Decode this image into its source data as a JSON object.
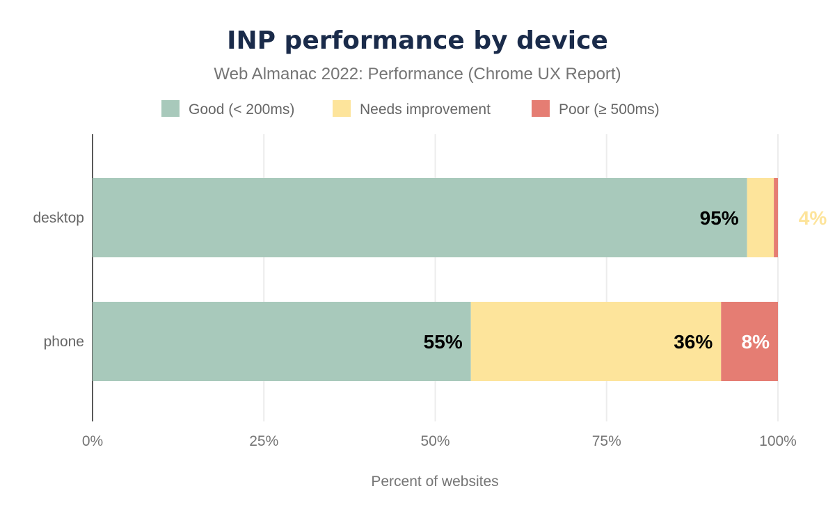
{
  "chart_data": {
    "type": "bar",
    "orientation": "horizontal",
    "stacked": true,
    "title": "INP performance by device",
    "subtitle": "Web Almanac 2022: Performance (Chrome UX Report)",
    "xlabel": "Percent of websites",
    "ylabel": "",
    "xlim": [
      0,
      100
    ],
    "x_ticks": [
      "0%",
      "25%",
      "50%",
      "75%",
      "100%"
    ],
    "grid": true,
    "legend_position": "top",
    "categories": [
      "desktop",
      "phone"
    ],
    "series": [
      {
        "name": "Good (< 200ms)",
        "color": "#a8c9bb",
        "values": [
          95.5,
          55.2
        ],
        "labels": [
          "95%",
          "55%"
        ],
        "label_color": "#000000"
      },
      {
        "name": "Needs improvement",
        "color": "#fde49b",
        "values": [
          3.9,
          36.5
        ],
        "labels": [
          "4%",
          "36%"
        ],
        "label_color": "#000000"
      },
      {
        "name": "Poor (≥ 500ms)",
        "color": "#e57d73",
        "values": [
          0.6,
          8.3
        ],
        "labels": [
          "",
          "8%"
        ],
        "label_color": "#ffffff"
      }
    ]
  }
}
